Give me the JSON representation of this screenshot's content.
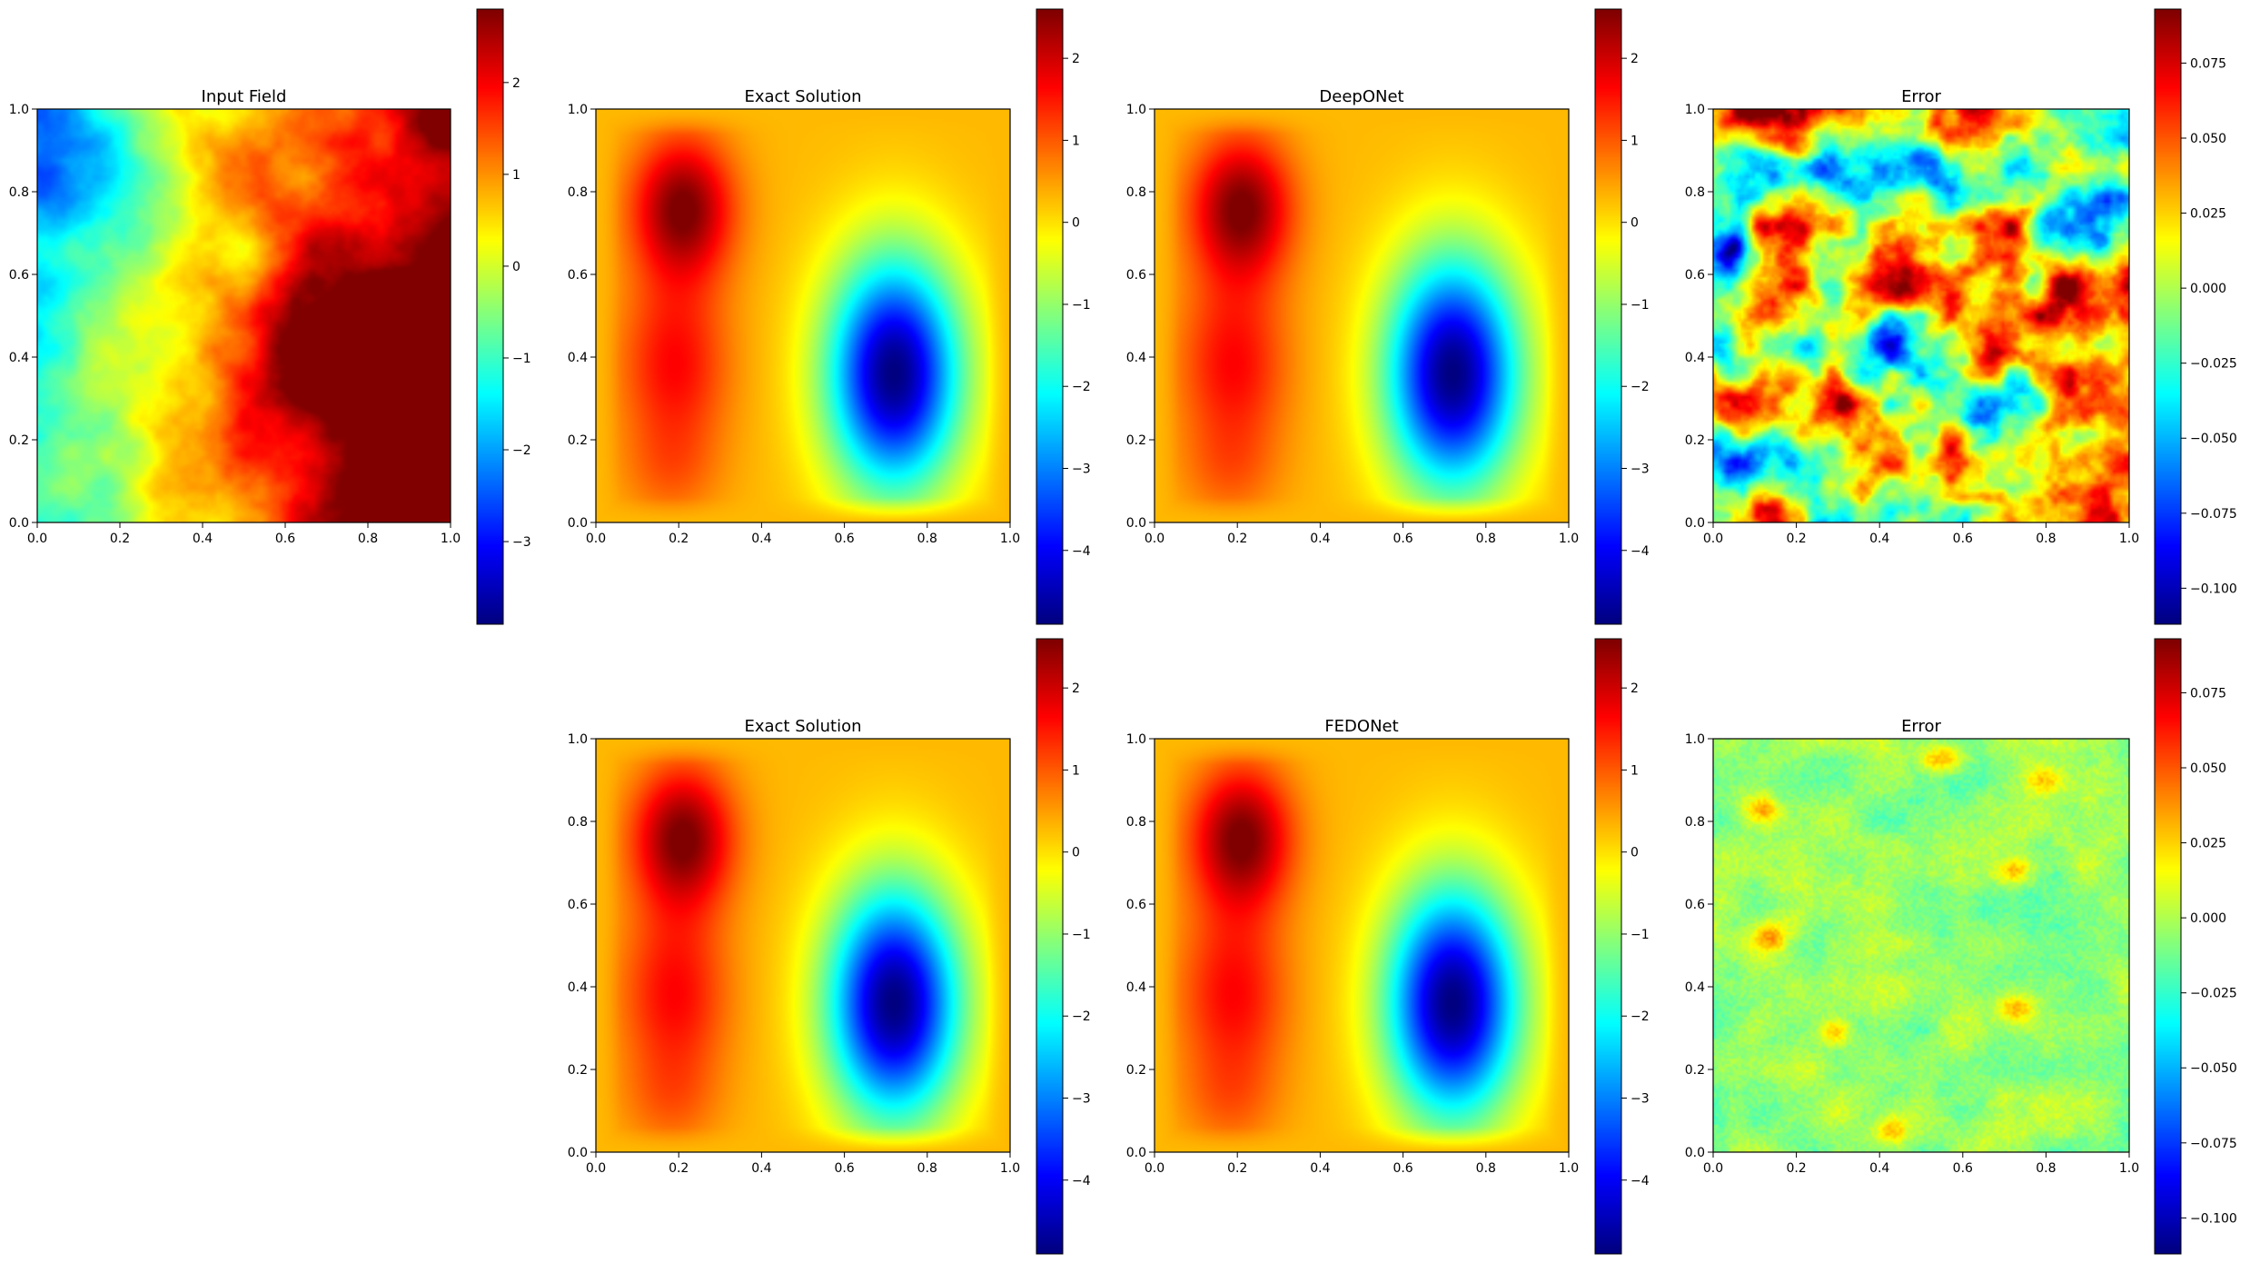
{
  "chart_data": [
    {
      "type": "heatmap",
      "title": "Input Field",
      "field": "input",
      "xlim": [
        0,
        1
      ],
      "ylim": [
        0,
        1
      ],
      "xticks": [
        "0.0",
        "0.2",
        "0.4",
        "0.6",
        "0.8",
        "1.0"
      ],
      "yticks": [
        "0.0",
        "0.2",
        "0.4",
        "0.6",
        "0.8",
        "1.0"
      ],
      "colorbar": {
        "min": -3.9,
        "max": 2.8,
        "ticks": [
          {
            "v": -3,
            "label": "−3"
          },
          {
            "v": -2,
            "label": "−2"
          },
          {
            "v": -1,
            "label": "−1"
          },
          {
            "v": 0,
            "label": "0"
          },
          {
            "v": 1,
            "label": "1"
          },
          {
            "v": 2,
            "label": "2"
          }
        ]
      }
    },
    {
      "type": "heatmap",
      "title": "Exact Solution",
      "field": "solution",
      "xlim": [
        0,
        1
      ],
      "ylim": [
        0,
        1
      ],
      "xticks": [
        "0.0",
        "0.2",
        "0.4",
        "0.6",
        "0.8",
        "1.0"
      ],
      "yticks": [
        "0.0",
        "0.2",
        "0.4",
        "0.6",
        "0.8",
        "1.0"
      ],
      "colorbar": {
        "min": -4.9,
        "max": 2.6,
        "ticks": [
          {
            "v": -4,
            "label": "−4"
          },
          {
            "v": -3,
            "label": "−3"
          },
          {
            "v": -2,
            "label": "−2"
          },
          {
            "v": -1,
            "label": "−1"
          },
          {
            "v": 0,
            "label": "0"
          },
          {
            "v": 1,
            "label": "1"
          },
          {
            "v": 2,
            "label": "2"
          }
        ]
      }
    },
    {
      "type": "heatmap",
      "title": "DeepONet",
      "field": "solution",
      "xlim": [
        0,
        1
      ],
      "ylim": [
        0,
        1
      ],
      "xticks": [
        "0.0",
        "0.2",
        "0.4",
        "0.6",
        "0.8",
        "1.0"
      ],
      "yticks": [
        "0.0",
        "0.2",
        "0.4",
        "0.6",
        "0.8",
        "1.0"
      ],
      "colorbar": {
        "min": -4.9,
        "max": 2.6,
        "ticks": [
          {
            "v": -4,
            "label": "−4"
          },
          {
            "v": -3,
            "label": "−3"
          },
          {
            "v": -2,
            "label": "−2"
          },
          {
            "v": -1,
            "label": "−1"
          },
          {
            "v": 0,
            "label": "0"
          },
          {
            "v": 1,
            "label": "1"
          },
          {
            "v": 2,
            "label": "2"
          }
        ]
      }
    },
    {
      "type": "heatmap",
      "title": "Error",
      "field": "error_deeponet",
      "xlim": [
        0,
        1
      ],
      "ylim": [
        0,
        1
      ],
      "xticks": [
        "0.0",
        "0.2",
        "0.4",
        "0.6",
        "0.8",
        "1.0"
      ],
      "yticks": [
        "0.0",
        "0.2",
        "0.4",
        "0.6",
        "0.8",
        "1.0"
      ],
      "colorbar": {
        "min": -0.112,
        "max": 0.093,
        "ticks": [
          {
            "v": -0.1,
            "label": "−0.100"
          },
          {
            "v": -0.075,
            "label": "−0.075"
          },
          {
            "v": -0.05,
            "label": "−0.050"
          },
          {
            "v": -0.025,
            "label": "−0.025"
          },
          {
            "v": 0,
            "label": "0.000"
          },
          {
            "v": 0.025,
            "label": "0.025"
          },
          {
            "v": 0.05,
            "label": "0.050"
          },
          {
            "v": 0.075,
            "label": "0.075"
          }
        ]
      }
    },
    {
      "type": "heatmap",
      "title": "Exact Solution",
      "field": "solution",
      "xlim": [
        0,
        1
      ],
      "ylim": [
        0,
        1
      ],
      "xticks": [
        "0.0",
        "0.2",
        "0.4",
        "0.6",
        "0.8",
        "1.0"
      ],
      "yticks": [
        "0.0",
        "0.2",
        "0.4",
        "0.6",
        "0.8",
        "1.0"
      ],
      "colorbar": {
        "min": -4.9,
        "max": 2.6,
        "ticks": [
          {
            "v": -4,
            "label": "−4"
          },
          {
            "v": -3,
            "label": "−3"
          },
          {
            "v": -2,
            "label": "−2"
          },
          {
            "v": -1,
            "label": "−1"
          },
          {
            "v": 0,
            "label": "0"
          },
          {
            "v": 1,
            "label": "1"
          },
          {
            "v": 2,
            "label": "2"
          }
        ]
      }
    },
    {
      "type": "heatmap",
      "title": "FEDONet",
      "field": "solution",
      "xlim": [
        0,
        1
      ],
      "ylim": [
        0,
        1
      ],
      "xticks": [
        "0.0",
        "0.2",
        "0.4",
        "0.6",
        "0.8",
        "1.0"
      ],
      "yticks": [
        "0.0",
        "0.2",
        "0.4",
        "0.6",
        "0.8",
        "1.0"
      ],
      "colorbar": {
        "min": -4.9,
        "max": 2.6,
        "ticks": [
          {
            "v": -4,
            "label": "−4"
          },
          {
            "v": -3,
            "label": "−3"
          },
          {
            "v": -2,
            "label": "−2"
          },
          {
            "v": -1,
            "label": "−1"
          },
          {
            "v": 0,
            "label": "0"
          },
          {
            "v": 1,
            "label": "1"
          },
          {
            "v": 2,
            "label": "2"
          }
        ]
      }
    },
    {
      "type": "heatmap",
      "title": "Error",
      "field": "error_fedonet",
      "xlim": [
        0,
        1
      ],
      "ylim": [
        0,
        1
      ],
      "xticks": [
        "0.0",
        "0.2",
        "0.4",
        "0.6",
        "0.8",
        "1.0"
      ],
      "yticks": [
        "0.0",
        "0.2",
        "0.4",
        "0.6",
        "0.8",
        "1.0"
      ],
      "colorbar": {
        "min": -0.112,
        "max": 0.093,
        "ticks": [
          {
            "v": -0.1,
            "label": "−0.100"
          },
          {
            "v": -0.075,
            "label": "−0.075"
          },
          {
            "v": -0.05,
            "label": "−0.050"
          },
          {
            "v": -0.025,
            "label": "−0.025"
          },
          {
            "v": 0,
            "label": "0.000"
          },
          {
            "v": 0.025,
            "label": "0.025"
          },
          {
            "v": 0.05,
            "label": "0.050"
          },
          {
            "v": 0.075,
            "label": "0.075"
          }
        ]
      }
    }
  ]
}
